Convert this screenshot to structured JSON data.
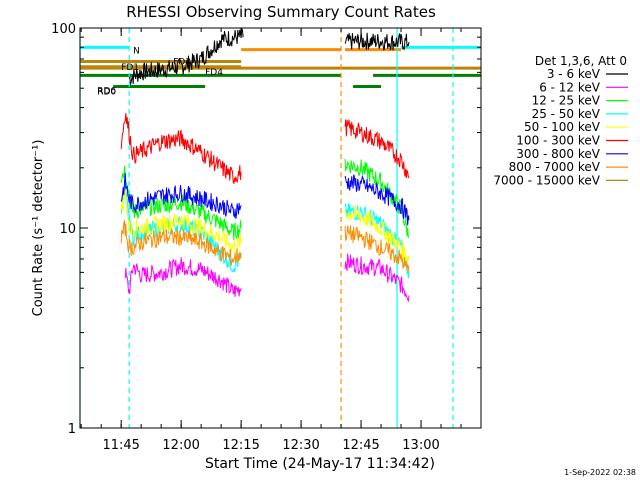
{
  "chart_data": {
    "type": "line",
    "title": "RHESSI Observing Summary Count Rates",
    "xlabel": "Start Time (24-May-17 11:34:42)",
    "ylabel": "Count Rate (s⁻¹ detector⁻¹)",
    "yscale": "log",
    "ylim": [
      1,
      100
    ],
    "xlim": [
      "11:34:42",
      "13:15:00"
    ],
    "x_ticks": [
      "11:45",
      "12:00",
      "12:15",
      "12:30",
      "12:45",
      "13:00"
    ],
    "y_ticks": [
      "1",
      "10",
      "100"
    ],
    "legend_title": "Det 1,3,6, Att 0",
    "legend_position": "right",
    "timestamp": "1-Sep-2022 02:38",
    "series": [
      {
        "name": "3 - 6 keV",
        "color": "#000000",
        "segments": [
          {
            "x": [
              "11:47",
              "11:50",
              "11:55",
              "12:00",
              "12:05",
              "12:10",
              "12:14",
              "12:15:30"
            ],
            "y": [
              56,
              60,
              62,
              64,
              70,
              88,
              90,
              90
            ]
          },
          {
            "x": [
              "12:41",
              "12:45",
              "12:50",
              "12:55",
              "12:57"
            ],
            "y": [
              85,
              86,
              86,
              85,
              85
            ]
          }
        ]
      },
      {
        "name": "6 - 12 keV",
        "color": "#ff00ff",
        "segments": [
          {
            "x": [
              "11:46",
              "11:47",
              "11:48",
              "11:50",
              "11:55",
              "12:00",
              "12:05",
              "12:10",
              "12:13",
              "12:15"
            ],
            "y": [
              6,
              4.8,
              6.5,
              5.8,
              6,
              6.5,
              6.2,
              5.5,
              4.8,
              5
            ]
          },
          {
            "x": [
              "12:41",
              "12:45",
              "12:50",
              "12:55",
              "12:57"
            ],
            "y": [
              6.8,
              6.5,
              6.3,
              5.2,
              4.6
            ]
          }
        ]
      },
      {
        "name": "12 - 25 keV",
        "color": "#00ff00",
        "segments": [
          {
            "x": [
              "11:45",
              "11:46",
              "11:47",
              "11:48",
              "11:50",
              "11:55",
              "12:00",
              "12:05",
              "12:10",
              "12:13",
              "12:15"
            ],
            "y": [
              18,
              20,
              14,
              12,
              12.5,
              13,
              13.5,
              12,
              10.5,
              9.5,
              10
            ]
          },
          {
            "x": [
              "12:41",
              "12:45",
              "12:50",
              "12:55",
              "12:57"
            ],
            "y": [
              21,
              20,
              17,
              12.5,
              9
            ]
          }
        ]
      },
      {
        "name": "25 - 50 keV",
        "color": "#00ffff",
        "segments": [
          {
            "x": [
              "11:45",
              "11:46",
              "11:47",
              "11:48",
              "11:50",
              "11:55",
              "12:00",
              "12:05",
              "12:10",
              "12:13",
              "12:15"
            ],
            "y": [
              13,
              15,
              11,
              9,
              9.5,
              10,
              10.5,
              9.5,
              7.5,
              6.5,
              7
            ]
          },
          {
            "x": [
              "12:41",
              "12:45",
              "12:50",
              "12:55",
              "12:57"
            ],
            "y": [
              12,
              12,
              10.5,
              8,
              6
            ]
          }
        ]
      },
      {
        "name": "50 - 100 keV",
        "color": "#ffff00",
        "segments": [
          {
            "x": [
              "11:45",
              "11:46",
              "11:47",
              "11:48",
              "11:50",
              "11:55",
              "12:00",
              "12:05",
              "12:10",
              "12:13",
              "12:15"
            ],
            "y": [
              12,
              15,
              10,
              10,
              10,
              10.5,
              11,
              10,
              9,
              8,
              8.5
            ]
          },
          {
            "x": [
              "12:41",
              "12:45",
              "12:50",
              "12:55",
              "12:57"
            ],
            "y": [
              12,
              11.5,
              10,
              8,
              7
            ]
          }
        ]
      },
      {
        "name": "100 - 300 keV",
        "color": "#ff0000",
        "segments": [
          {
            "x": [
              "11:45",
              "11:46",
              "11:47",
              "11:48",
              "11:50",
              "11:55",
              "12:00",
              "12:05",
              "12:10",
              "12:13",
              "12:15"
            ],
            "y": [
              26,
              38,
              30,
              23,
              24,
              27,
              28,
              24,
              20,
              18,
              19
            ]
          },
          {
            "x": [
              "12:41",
              "12:45",
              "12:50",
              "12:55",
              "12:57"
            ],
            "y": [
              32,
              30,
              27,
              22,
              18
            ]
          }
        ]
      },
      {
        "name": "300 - 800 keV",
        "color": "#0000ff",
        "segments": [
          {
            "x": [
              "11:45",
              "11:46",
              "11:47",
              "11:48",
              "11:50",
              "11:55",
              "12:00",
              "12:05",
              "12:10",
              "12:13",
              "12:15"
            ],
            "y": [
              14,
              17,
              14,
              13,
              13.5,
              14.5,
              15,
              14,
              13,
              12,
              13
            ]
          },
          {
            "x": [
              "12:41",
              "12:45",
              "12:50",
              "12:55",
              "12:57"
            ],
            "y": [
              17,
              16.5,
              15,
              13,
              11
            ]
          }
        ]
      },
      {
        "name": "800 - 7000 keV",
        "color": "#ff8c00",
        "segments": [
          {
            "x": [
              "11:45",
              "11:46",
              "11:47",
              "11:48",
              "11:50",
              "11:55",
              "12:00",
              "12:05",
              "12:10",
              "12:13",
              "12:15"
            ],
            "y": [
              9,
              10,
              8,
              8,
              8.5,
              9,
              9,
              8.5,
              7.5,
              7,
              7.5
            ]
          },
          {
            "x": [
              "12:41",
              "12:45",
              "12:50",
              "12:55",
              "12:57"
            ],
            "y": [
              9.5,
              9,
              8,
              7,
              6
            ]
          }
        ]
      },
      {
        "name": "7000 - 15000 keV",
        "color": "#b8860b",
        "segments": []
      }
    ],
    "flags": [
      {
        "label": "N",
        "color": "#00ffff",
        "y": 80,
        "segments": [
          [
            "11:34:42",
            "11:47"
          ],
          [
            "12:55",
            "13:15"
          ]
        ]
      },
      {
        "label": "FD1",
        "color": "#b8860b",
        "y": 64,
        "segments": [
          [
            "11:34:42",
            "12:15"
          ]
        ]
      },
      {
        "label": "FD3",
        "color": "#b8860b",
        "y": 68,
        "segments": [
          [
            "11:34:42",
            "12:15"
          ]
        ]
      },
      {
        "label": "FD4",
        "color": "#b8860b",
        "y": 63,
        "segments": [
          [
            "11:34:42",
            "13:15"
          ]
        ]
      },
      {
        "label": "RD0",
        "color": "#008000",
        "y": 58,
        "segments": [
          [
            "11:34:42",
            "12:40"
          ],
          [
            "12:48",
            "13:15"
          ]
        ]
      },
      {
        "label": "RD6",
        "color": "#008000",
        "y": 51,
        "segments": [
          [
            "11:43",
            "12:06"
          ],
          [
            "12:43",
            "12:50"
          ]
        ]
      },
      {
        "label": "",
        "color": "#ff8c00",
        "y": 78,
        "segments": [
          [
            "12:15",
            "12:40"
          ],
          [
            "12:41",
            "12:55"
          ]
        ]
      }
    ],
    "vlines": [
      {
        "x": "11:34:42",
        "color": "#00ffff",
        "style": "solid"
      },
      {
        "x": "11:47",
        "color": "#00ffff",
        "style": "dashed"
      },
      {
        "x": "12:40",
        "color": "#ff8c00",
        "style": "dashed"
      },
      {
        "x": "12:54",
        "color": "#00ffff",
        "style": "solid"
      },
      {
        "x": "13:08",
        "color": "#00ffff",
        "style": "dashed"
      }
    ]
  }
}
